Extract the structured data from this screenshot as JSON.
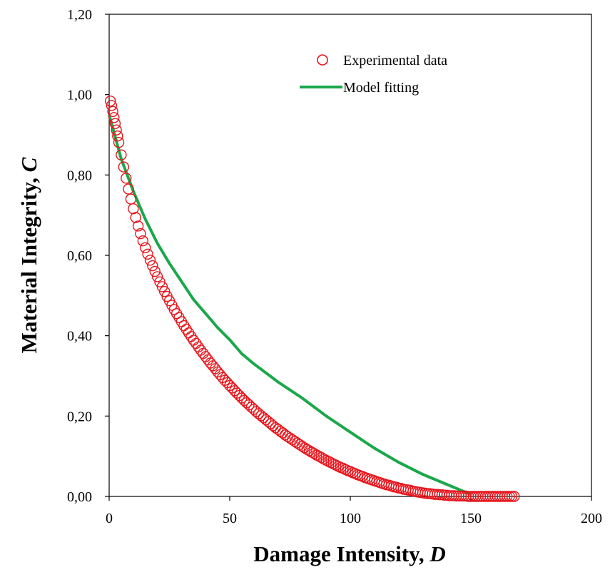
{
  "chart_data": {
    "type": "scatter",
    "title": "",
    "xlabel": "Damage Intensity, ",
    "xlabel_var": "D",
    "ylabel": "Material Integrity, ",
    "ylabel_var": "C",
    "xlim": [
      0,
      200
    ],
    "ylim": [
      0,
      1.2
    ],
    "x_ticks": [
      "0",
      "50",
      "100",
      "150",
      "200"
    ],
    "y_ticks": [
      "0,00",
      "0,20",
      "0,40",
      "0,60",
      "0,80",
      "1,00",
      "1,20"
    ],
    "grid": false,
    "legend_position": "top-center",
    "series": [
      {
        "name": "Experimental data",
        "kind": "markers",
        "marker": "open-circle",
        "color": "#e8141b",
        "x": [
          0.5,
          1,
          1.5,
          2,
          2.5,
          3,
          3.5,
          4,
          5,
          6,
          7,
          8,
          9,
          10,
          11,
          12,
          13,
          14,
          15,
          16,
          17,
          18,
          19,
          20,
          21,
          22,
          23,
          24,
          25,
          26,
          27,
          28,
          29,
          30,
          31,
          32,
          33,
          34,
          35,
          36,
          37,
          38,
          39,
          40,
          41,
          42,
          43,
          44,
          45,
          46,
          47,
          48,
          49,
          50,
          51,
          52,
          53,
          54,
          55,
          56,
          57,
          58,
          59,
          60,
          61,
          62,
          63,
          64,
          65,
          66,
          67,
          68,
          69,
          70,
          71,
          72,
          73,
          74,
          75,
          76,
          77,
          78,
          79,
          80,
          81,
          82,
          83,
          84,
          85,
          86,
          87,
          88,
          89,
          90,
          91,
          92,
          93,
          94,
          95,
          96,
          97,
          98,
          99,
          100,
          101,
          102,
          103,
          104,
          105,
          106,
          107,
          108,
          109,
          110,
          111,
          112,
          113,
          114,
          115,
          116,
          117,
          118,
          119,
          120,
          121,
          122,
          123,
          124,
          125,
          126,
          127,
          128,
          129,
          130,
          131,
          132,
          133,
          134,
          135,
          136,
          137,
          138,
          139,
          140,
          141,
          142,
          143,
          144,
          145,
          146,
          147,
          148,
          149,
          150,
          151,
          152,
          153,
          154,
          155,
          156,
          157,
          158,
          159,
          160,
          161,
          162,
          163,
          164,
          165,
          166,
          167,
          168
        ],
        "y": [
          0.984,
          0.973,
          0.958,
          0.943,
          0.928,
          0.912,
          0.897,
          0.881,
          0.85,
          0.82,
          0.792,
          0.765,
          0.74,
          0.716,
          0.694,
          0.673,
          0.654,
          0.636,
          0.619,
          0.603,
          0.588,
          0.574,
          0.56,
          0.547,
          0.534,
          0.522,
          0.51,
          0.498,
          0.487,
          0.476,
          0.465,
          0.455,
          0.445,
          0.435,
          0.425,
          0.416,
          0.407,
          0.398,
          0.389,
          0.381,
          0.372,
          0.364,
          0.356,
          0.348,
          0.34,
          0.332,
          0.325,
          0.318,
          0.31,
          0.303,
          0.296,
          0.289,
          0.283,
          0.276,
          0.27,
          0.263,
          0.257,
          0.251,
          0.245,
          0.239,
          0.233,
          0.228,
          0.222,
          0.217,
          0.211,
          0.206,
          0.201,
          0.196,
          0.191,
          0.186,
          0.181,
          0.176,
          0.171,
          0.167,
          0.162,
          0.158,
          0.153,
          0.149,
          0.145,
          0.141,
          0.137,
          0.133,
          0.129,
          0.125,
          0.121,
          0.117,
          0.114,
          0.11,
          0.107,
          0.103,
          0.1,
          0.097,
          0.093,
          0.09,
          0.087,
          0.084,
          0.081,
          0.078,
          0.075,
          0.072,
          0.07,
          0.067,
          0.064,
          0.062,
          0.059,
          0.057,
          0.054,
          0.052,
          0.05,
          0.047,
          0.045,
          0.043,
          0.041,
          0.039,
          0.037,
          0.035,
          0.033,
          0.031,
          0.029,
          0.028,
          0.026,
          0.024,
          0.023,
          0.021,
          0.02,
          0.018,
          0.017,
          0.016,
          0.015,
          0.013,
          0.012,
          0.011,
          0.01,
          0.009,
          0.008,
          0.007,
          0.007,
          0.006,
          0.005,
          0.005,
          0.004,
          0.004,
          0.003,
          0.003,
          0.002,
          0.002,
          0.002,
          0.001,
          0.001,
          0.001,
          0.001,
          0.001,
          0.0,
          0.0,
          0.0,
          0.0,
          0.0,
          0.0,
          0.0,
          0.0,
          0.0,
          0.0,
          0.0,
          0.0,
          0.0,
          0.0,
          0.0,
          0.0,
          0.0,
          0.0,
          0.0,
          0.0
        ]
      },
      {
        "name": "Model fitting",
        "kind": "line",
        "color": "#1aa84a",
        "x": [
          0,
          5,
          10,
          15,
          20,
          25,
          30,
          35,
          40,
          45,
          50,
          55,
          60,
          70,
          80,
          90,
          100,
          110,
          120,
          130,
          140,
          150
        ],
        "y": [
          0.95,
          0.84,
          0.76,
          0.69,
          0.63,
          0.58,
          0.535,
          0.49,
          0.455,
          0.42,
          0.39,
          0.355,
          0.33,
          0.285,
          0.245,
          0.2,
          0.16,
          0.12,
          0.085,
          0.055,
          0.03,
          0.005
        ]
      }
    ]
  }
}
